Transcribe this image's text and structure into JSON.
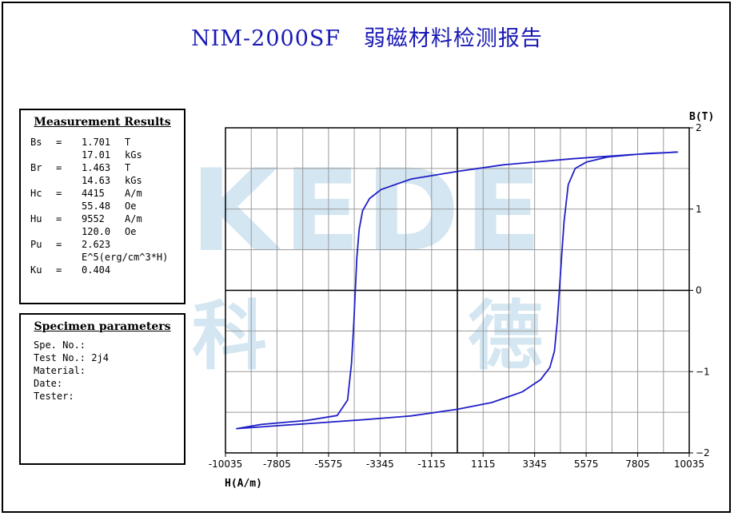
{
  "header": {
    "title": "NIM-2000SF   弱磁材料检测报告"
  },
  "watermark": {
    "text": "KEDE",
    "char_left": "科",
    "char_right": "德"
  },
  "results": {
    "heading": "Measurement Results",
    "rows": [
      {
        "name": "Bs",
        "eq": "=",
        "value": "1.701",
        "unit": "T"
      },
      {
        "name": "",
        "eq": "",
        "value": "17.01",
        "unit": "kGs"
      },
      {
        "name": "Br",
        "eq": "=",
        "value": "1.463",
        "unit": "T"
      },
      {
        "name": "",
        "eq": "",
        "value": "14.63",
        "unit": "kGs"
      },
      {
        "name": "Hc",
        "eq": "=",
        "value": "4415",
        "unit": "A/m"
      },
      {
        "name": "",
        "eq": "",
        "value": "55.48",
        "unit": "Oe"
      },
      {
        "name": "Hu",
        "eq": "=",
        "value": "9552",
        "unit": "A/m"
      },
      {
        "name": "",
        "eq": "",
        "value": "120.0",
        "unit": "Oe"
      },
      {
        "name": "Pu",
        "eq": "=",
        "value": "2.623",
        "unit": ""
      },
      {
        "name": "",
        "eq": "",
        "value": "E^5(erg/cm^3*H)",
        "unit": ""
      },
      {
        "name": "Ku",
        "eq": "=",
        "value": "0.404",
        "unit": ""
      }
    ]
  },
  "specimen": {
    "heading": "Specimen parameters",
    "rows": [
      "Spe. No.:",
      "Test No.: 2j4",
      "Material:",
      "Date:",
      "Tester:"
    ]
  },
  "chart_data": {
    "type": "line",
    "title": "",
    "xlabel": "H(A/m)",
    "ylabel": "B(T)",
    "xlim": [
      -10035,
      10035
    ],
    "ylim": [
      -2,
      2
    ],
    "grid": true,
    "x_ticks": [
      -10035,
      -7805,
      -5575,
      -3345,
      -1115,
      1115,
      3345,
      5575,
      7805,
      10035
    ],
    "x_tick_labels": [
      "-10035",
      "-7805",
      "-5575",
      "-3345",
      "-1115",
      "1115",
      "3345",
      "5575",
      "7805",
      "10035"
    ],
    "y_ticks": [
      2,
      1,
      0,
      -1,
      -2
    ],
    "y_tick_labels": [
      "2",
      "1",
      "0",
      "−1",
      "−2"
    ],
    "line_color": "#2020c8",
    "series": [
      {
        "name": "",
        "x": [
          9552,
          7500,
          5000,
          2000,
          0,
          -2000,
          -3300,
          -3800,
          -4100,
          -4250,
          -4350,
          -4415,
          -4480,
          -4580,
          -4750,
          -5200,
          -6500,
          -8500,
          -9552,
          -8000,
          -6000,
          -4000,
          -2000,
          0,
          1500,
          2800,
          3600,
          4000,
          4200,
          4320,
          4415,
          4510,
          4620,
          4800,
          5100,
          5600,
          6500,
          8200,
          9552
        ],
        "y": [
          1.701,
          1.67,
          1.62,
          1.545,
          1.463,
          1.37,
          1.24,
          1.13,
          0.98,
          0.75,
          0.4,
          0.0,
          -0.4,
          -0.9,
          -1.35,
          -1.54,
          -1.6,
          -1.65,
          -1.701,
          -1.67,
          -1.63,
          -1.59,
          -1.545,
          -1.463,
          -1.38,
          -1.25,
          -1.1,
          -0.95,
          -0.75,
          -0.4,
          0.0,
          0.4,
          0.85,
          1.3,
          1.5,
          1.58,
          1.64,
          1.685,
          1.701
        ]
      }
    ]
  }
}
